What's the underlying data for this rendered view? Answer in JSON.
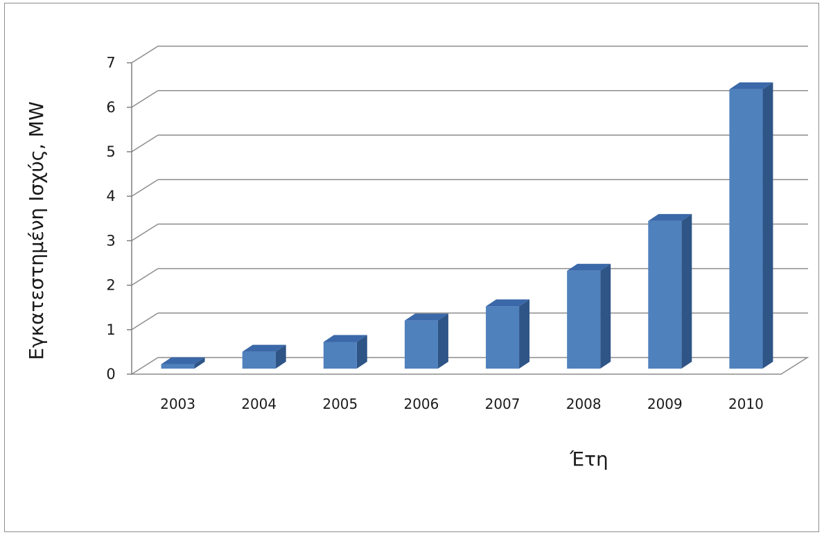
{
  "chart_data": {
    "type": "bar",
    "style": "3d-column",
    "title": "",
    "xlabel": "Έτη",
    "ylabel": "Εγκατεστημένη Ισχύς, MW",
    "categories": [
      "2003",
      "2004",
      "2005",
      "2006",
      "2007",
      "2008",
      "2009",
      "2010"
    ],
    "series": [
      {
        "values": [
          0.1,
          0.38,
          0.6,
          1.08,
          1.4,
          2.2,
          3.32,
          6.28
        ]
      }
    ],
    "ylim": [
      0,
      7
    ],
    "yticks": [
      "0",
      "1",
      "2",
      "3",
      "4",
      "5",
      "6",
      "7"
    ],
    "grid": true,
    "legend": "none",
    "colors": {
      "bar_front": "#4f81bd",
      "bar_top": "#3b68a8",
      "bar_side": "#2f5587",
      "grid": "#8c8c8c",
      "axis": "#7f7f7f"
    }
  }
}
